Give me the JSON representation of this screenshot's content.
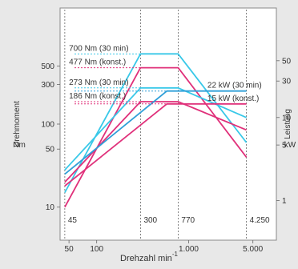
{
  "chart_data": {
    "type": "line",
    "title": "",
    "xlabel": "Drehzahl min",
    "xlabel_superscript": "-1",
    "ylabel_left": "Drehmoment",
    "ylabel_left_unit": "Nm",
    "ylabel_right": "Leistung",
    "ylabel_right_unit": "kW",
    "x_scale": "log",
    "y_scale": "log",
    "xlim": [
      40,
      9000
    ],
    "ylim_left": [
      4,
      2500
    ],
    "x_ticks": [
      50,
      100,
      1000,
      5000
    ],
    "x_tick_labels": [
      "50",
      "100",
      "1.000",
      "5.000"
    ],
    "y_left_ticks": [
      10,
      50,
      100,
      300,
      500
    ],
    "y_left_tick_labels": [
      "10",
      "50",
      "100",
      "300",
      "500"
    ],
    "y_right_ticks": [
      {
        "value": 50,
        "torque_equiv": 580
      },
      {
        "value": 30,
        "torque_equiv": 330
      },
      {
        "value": 10,
        "torque_equiv": 120
      },
      {
        "value": 5,
        "torque_equiv": 56
      },
      {
        "value": 1,
        "torque_equiv": 12
      }
    ],
    "y_right_tick_labels": [
      "50",
      "30",
      "10",
      "5",
      "1"
    ],
    "speed_markers": [
      {
        "x": 45,
        "label": "45"
      },
      {
        "x": 300,
        "label": "300"
      },
      {
        "x": 770,
        "label": "770"
      },
      {
        "x": 4250,
        "label": "4.250"
      }
    ],
    "series": [
      {
        "name": "700  Nm  (30 min)",
        "color": "#38c8e8",
        "style": "solid",
        "points": [
          [
            45,
            15
          ],
          [
            300,
            700
          ],
          [
            770,
            700
          ],
          [
            4250,
            60
          ]
        ]
      },
      {
        "name": "477  Nm  (konst.)",
        "color": "#e0307a",
        "style": "solid",
        "points": [
          [
            45,
            10
          ],
          [
            300,
            477
          ],
          [
            770,
            477
          ],
          [
            4250,
            40
          ]
        ]
      },
      {
        "name": "273  Nm  (30 min)",
        "color": "#38c8e8",
        "style": "solid",
        "points": [
          [
            45,
            28
          ],
          [
            300,
            273
          ],
          [
            770,
            273
          ],
          [
            4250,
            120
          ]
        ]
      },
      {
        "name": "186  Nm  (konst.)",
        "color": "#e0307a",
        "style": "solid",
        "points": [
          [
            45,
            20
          ],
          [
            300,
            186
          ],
          [
            770,
            186
          ],
          [
            4250,
            85
          ]
        ]
      },
      {
        "name": "22 kW (30 min)",
        "color": "#2f9fd8",
        "style": "solid",
        "points": [
          [
            45,
            25
          ],
          [
            580,
            250
          ],
          [
            4250,
            250
          ]
        ]
      },
      {
        "name": "15 kW (konst.)",
        "color": "#e0307a",
        "style": "solid",
        "points": [
          [
            45,
            18
          ],
          [
            580,
            175
          ],
          [
            4250,
            175
          ]
        ]
      }
    ],
    "annotations": [
      {
        "text": "700  Nm  (30 min)",
        "anchor_x": 50,
        "anchor_y": 700
      },
      {
        "text": "477  Nm  (konst.)",
        "anchor_x": 50,
        "anchor_y": 477
      },
      {
        "text": "273  Nm  (30 min)",
        "anchor_x": 50,
        "anchor_y": 273
      },
      {
        "text": "186  Nm  (konst.)",
        "anchor_x": 50,
        "anchor_y": 186
      },
      {
        "text": "22 kW (30 min)",
        "anchor_x": 1600,
        "anchor_y": 250
      },
      {
        "text": "15 kW (konst.)",
        "anchor_x": 1600,
        "anchor_y": 175
      }
    ]
  }
}
